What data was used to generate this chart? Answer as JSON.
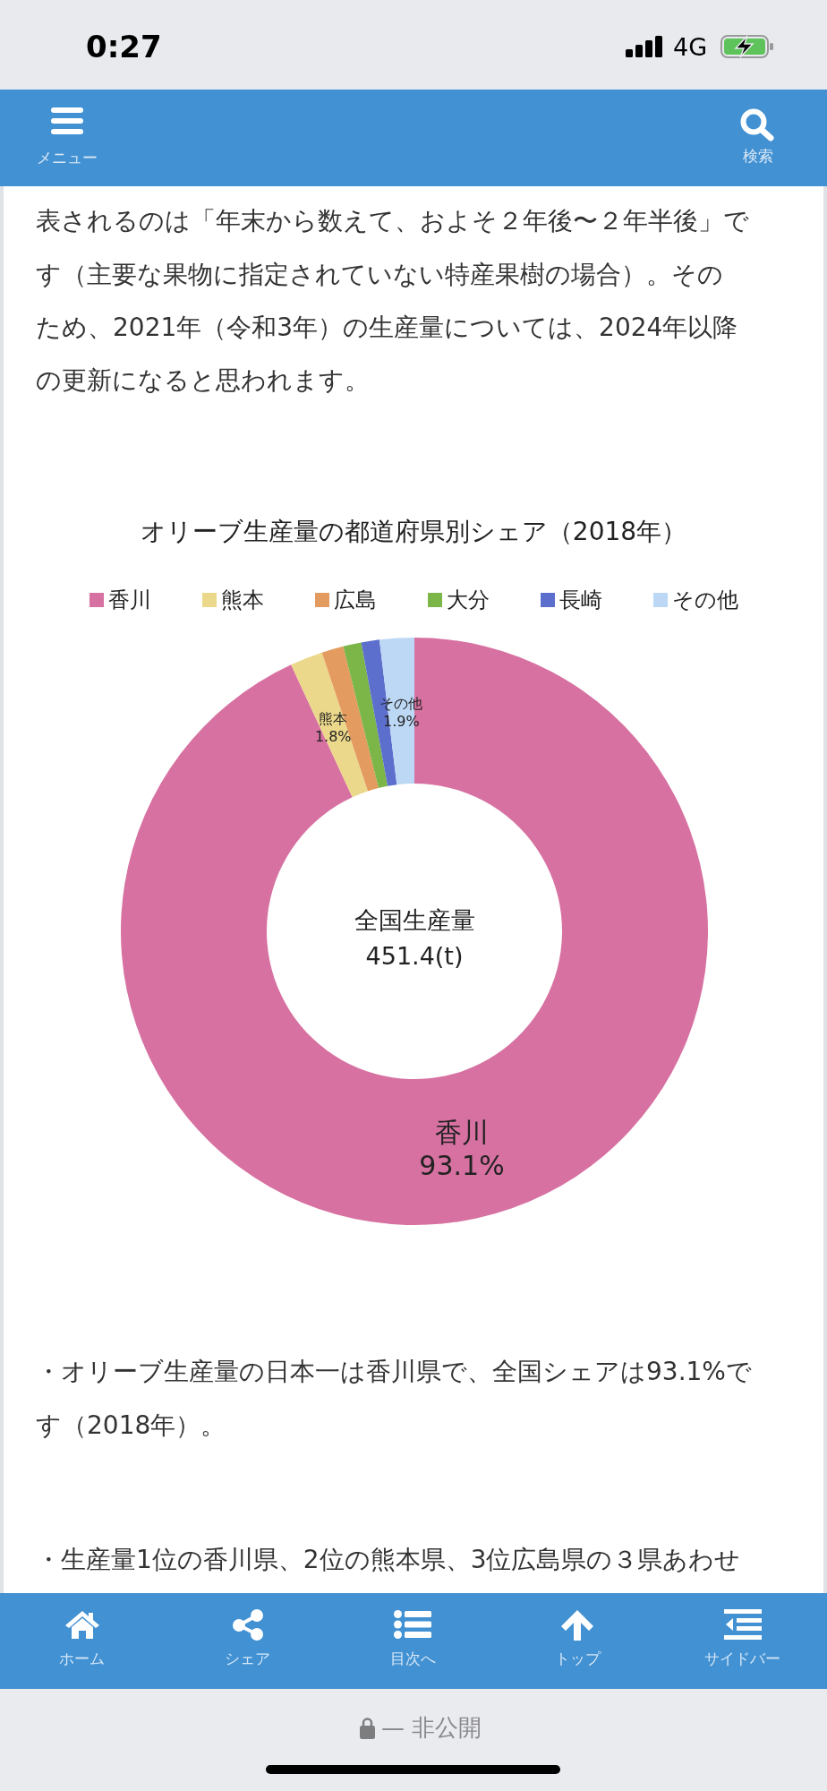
{
  "chart_data": {
    "type": "donut",
    "title": "オリーブ生産量の都道府県別シェア（2018年）",
    "categories": [
      "香川",
      "熊本",
      "広島",
      "大分",
      "長崎",
      "その他"
    ],
    "values": [
      93.1,
      1.8,
      1.2,
      1.0,
      1.0,
      1.9
    ],
    "colors": [
      "#d771a1",
      "#ecd88a",
      "#e39b5f",
      "#7cb548",
      "#5d6fcd",
      "#bdd8f5"
    ],
    "value_labels": [
      "93.1%",
      "1.8%",
      null,
      null,
      null,
      "1.9%"
    ],
    "legend": "top",
    "annotations": [
      "0:27",
      "4G",
      "メニュー",
      "検索",
      "表されるのは「年末から数えて、およそ２年後〜２年半後」で",
      "す（主要な果物に指定されていない特産果樹の場合）。その",
      "ため、2021年（令和3年）の生産量については、2024年以降",
      "の更新になると思われます。",
      "全国生産量",
      "451.4(t)",
      "・オリーブ生産量の日本一は香川県で、全国シェアは93.1%で",
      "す（2018年）。",
      "・生産量1位の香川県、2位の熊本県、3位広島県の３県あわせ",
      "ホーム",
      "シェア",
      "目次へ",
      "トップ",
      "サイドバー",
      "— 非公開"
    ]
  }
}
